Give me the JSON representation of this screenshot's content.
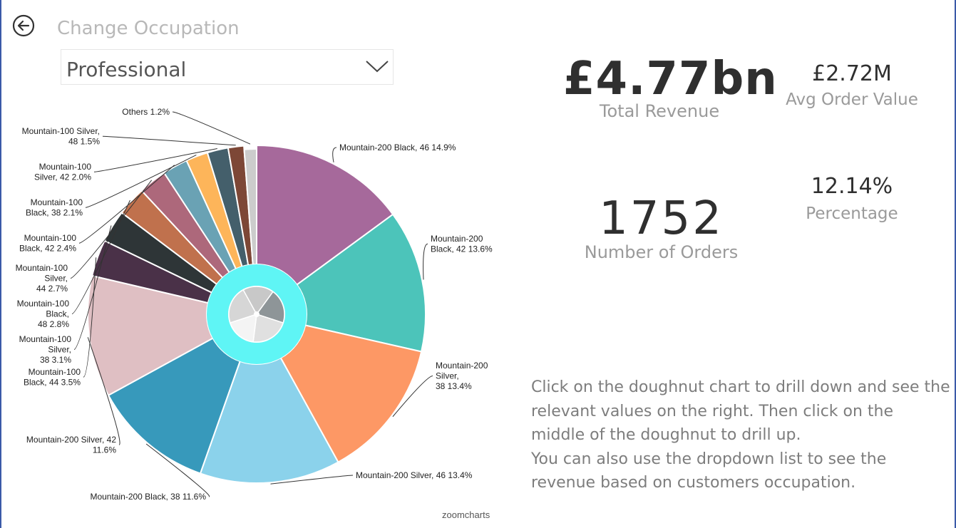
{
  "header": {
    "title": "Change Occupation",
    "back_icon": "back-arrow-circle-icon"
  },
  "dropdown": {
    "selected": "Professional",
    "icon": "chevron-down-icon"
  },
  "kpis": {
    "total_revenue": {
      "value": "£4.77bn",
      "label": "Total Revenue"
    },
    "avg_order_value": {
      "value": "£2.72M",
      "label": "Avg Order Value"
    },
    "number_of_orders": {
      "value": "1752",
      "label": "Number of Orders"
    },
    "percentage": {
      "value": "12.14%",
      "label": "Percentage"
    }
  },
  "instructions": {
    "line1": "Click on the doughnut chart to drill down and see the relevant values on the right. Then click on the middle of the doughnut to drill up.",
    "line2": "You can also use the dropdown list to see the revenue based on customers occupation."
  },
  "brand": "zoomcharts",
  "chart_data": {
    "type": "pie",
    "inner_ring_color": "#5ff5f5",
    "slices": [
      {
        "label": [
          "Mountain-200 Black, 46 14.9%"
        ],
        "value": 14.9,
        "color": "#a6699b"
      },
      {
        "label": [
          "Mountain-200",
          "Black, 42 13.6%"
        ],
        "value": 13.6,
        "color": "#4cc4ba"
      },
      {
        "label": [
          "Mountain-200",
          "Silver,",
          "38 13.4%"
        ],
        "value": 13.4,
        "color": "#fd9865"
      },
      {
        "label": [
          "Mountain-200 Silver, 46 13.4%"
        ],
        "value": 13.4,
        "color": "#8bd2eb"
      },
      {
        "label": [
          "Mountain-200 Black, 38 11.6%"
        ],
        "value": 11.6,
        "color": "#3799bb"
      },
      {
        "label": [
          "Mountain-200 Silver, 42",
          "11.6%"
        ],
        "value": 11.6,
        "color": "#dfbfc3"
      },
      {
        "label": [
          "Mountain-100",
          "Black, 44 3.5%"
        ],
        "value": 3.5,
        "color": "#4a3148"
      },
      {
        "label": [
          "Mountain-100",
          "Silver,",
          "38 3.1%"
        ],
        "value": 3.1,
        "color": "#2e3537"
      },
      {
        "label": [
          "Mountain-100",
          "Black,",
          "48 2.8%"
        ],
        "value": 2.8,
        "color": "#c0714d"
      },
      {
        "label": [
          "Mountain-100",
          "Silver,",
          "44 2.7%"
        ],
        "value": 2.7,
        "color": "#ad687b"
      },
      {
        "label": [
          "Mountain-100",
          "Black, 42 2.4%"
        ],
        "value": 2.4,
        "color": "#6aa2b4"
      },
      {
        "label": [
          "Mountain-100",
          "Black, 38 2.1%"
        ],
        "value": 2.1,
        "color": "#fdb55a"
      },
      {
        "label": [
          "Mountain-100",
          "Silver, 42 2.0%"
        ],
        "value": 2.0,
        "color": "#445f6b"
      },
      {
        "label": [
          "Mountain-100 Silver,",
          "48 1.5%"
        ],
        "value": 1.5,
        "color": "#7d4736"
      },
      {
        "label": [
          "Others 1.2%"
        ],
        "value": 1.2,
        "color": "#cccccc",
        "others": true
      }
    ]
  }
}
